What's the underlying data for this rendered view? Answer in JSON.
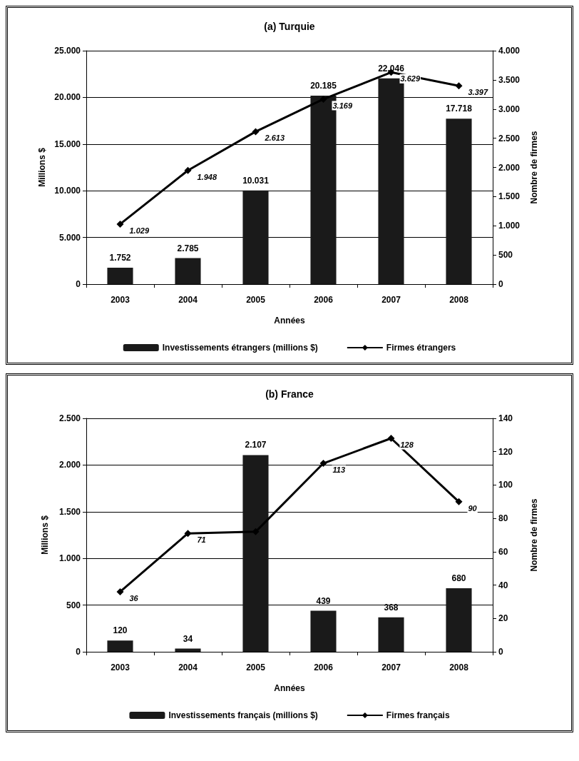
{
  "chart_data": [
    {
      "type": "bar",
      "title": "(a) Turquie",
      "xlabel": "Années",
      "ylabel": "Millions $",
      "y2label": "Nombre de firmes",
      "categories": [
        "2003",
        "2004",
        "2005",
        "2006",
        "2007",
        "2008"
      ],
      "series": [
        {
          "name": "Investissements étrangers (millions $)",
          "color": "#1a1a1a",
          "values": [
            1752,
            2785,
            10031,
            20185,
            22046,
            17718
          ],
          "value_labels": [
            "1.752",
            "2.785",
            "10.031",
            "20.185",
            "22.046",
            "17.718"
          ]
        },
        {
          "name": "Firmes étrangers",
          "type": "line",
          "axis": "y2",
          "color": "#000000",
          "marker": "diamond",
          "values": [
            1029,
            1948,
            2613,
            3169,
            3629,
            3397
          ],
          "value_labels": [
            "1.029",
            "1.948",
            "2.613",
            "3.169",
            "3.629",
            "3.397"
          ]
        }
      ],
      "ylim": [
        0,
        25000
      ],
      "yticks": [
        {
          "value": 0,
          "label": "0"
        },
        {
          "value": 5000,
          "label": "5.000"
        },
        {
          "value": 10000,
          "label": "10.000"
        },
        {
          "value": 15000,
          "label": "15.000"
        },
        {
          "value": 20000,
          "label": "20.000"
        },
        {
          "value": 25000,
          "label": "25.000"
        }
      ],
      "y2lim": [
        0,
        4000
      ],
      "y2ticks": [
        {
          "value": 0,
          "label": "0"
        },
        {
          "value": 500,
          "label": "500"
        },
        {
          "value": 1000,
          "label": "1.000"
        },
        {
          "value": 1500,
          "label": "1.500"
        },
        {
          "value": 2000,
          "label": "2.000"
        },
        {
          "value": 2500,
          "label": "2.500"
        },
        {
          "value": 3000,
          "label": "3.000"
        },
        {
          "value": 3500,
          "label": "3.500"
        },
        {
          "value": 4000,
          "label": "4.000"
        }
      ],
      "grid": "y",
      "legend": "bottom"
    },
    {
      "type": "bar",
      "title": "(b) France",
      "xlabel": "Années",
      "ylabel": "Millions $",
      "y2label": "Nombre de firmes",
      "categories": [
        "2003",
        "2004",
        "2005",
        "2006",
        "2007",
        "2008"
      ],
      "series": [
        {
          "name": "Investissements français (millions $)",
          "color": "#1a1a1a",
          "values": [
            120,
            34,
            2107,
            439,
            368,
            680
          ],
          "value_labels": [
            "120",
            "34",
            "2.107",
            "439",
            "368",
            "680"
          ]
        },
        {
          "name": "Firmes français",
          "type": "line",
          "axis": "y2",
          "color": "#000000",
          "marker": "diamond",
          "values": [
            36,
            71,
            72,
            113,
            128,
            90
          ],
          "value_labels": [
            "36",
            "71",
            null,
            "113",
            "128",
            "90"
          ]
        }
      ],
      "ylim": [
        0,
        2500
      ],
      "yticks": [
        {
          "value": 0,
          "label": "0"
        },
        {
          "value": 500,
          "label": "500"
        },
        {
          "value": 1000,
          "label": "1.000"
        },
        {
          "value": 1500,
          "label": "1.500"
        },
        {
          "value": 2000,
          "label": "2.000"
        },
        {
          "value": 2500,
          "label": "2.500"
        }
      ],
      "y2lim": [
        0,
        140
      ],
      "y2ticks": [
        0,
        20,
        40,
        60,
        80,
        100,
        120,
        140
      ],
      "grid": "y",
      "legend": "bottom"
    }
  ]
}
